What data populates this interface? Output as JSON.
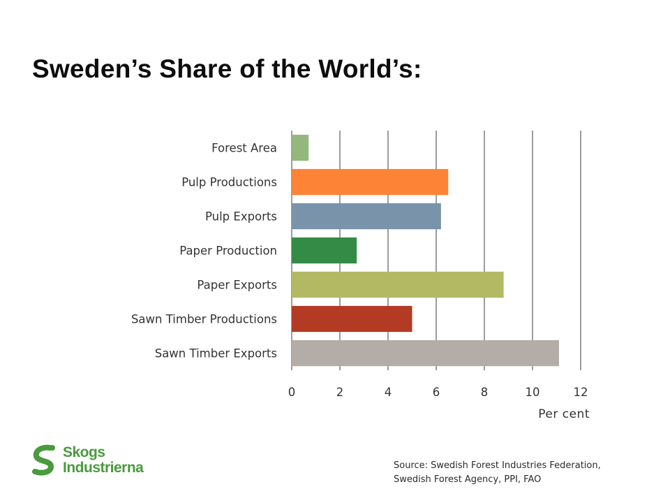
{
  "slide": {
    "title": "Sweden’s Share of the World’s:",
    "source_line1": "Source: Swedish Forest Industries Federation,",
    "source_line2": "Swedish Forest Agency,  PPI, FAO"
  },
  "logo": {
    "line1": "Skogs",
    "line2": "Industrierna",
    "color": "#4a9a3e"
  },
  "chart_data": {
    "type": "bar",
    "orientation": "horizontal",
    "title": "",
    "xlabel": "Per cent",
    "ylabel": "",
    "xlim": [
      0,
      12
    ],
    "xticks": [
      0,
      2,
      4,
      6,
      8,
      10,
      12
    ],
    "grid": "vertical",
    "legend": "none",
    "categories": [
      "Forest Area",
      "Pulp Productions",
      "Pulp Exports",
      "Paper Production",
      "Paper Exports",
      "Sawn Timber Productions",
      "Sawn Timber Exports"
    ],
    "values": [
      0.7,
      6.5,
      6.2,
      2.7,
      8.8,
      5.0,
      11.1
    ],
    "colors": [
      "#93b77d",
      "#fd8436",
      "#7993aa",
      "#348b45",
      "#b3b962",
      "#b33a23",
      "#b4ada7"
    ]
  }
}
